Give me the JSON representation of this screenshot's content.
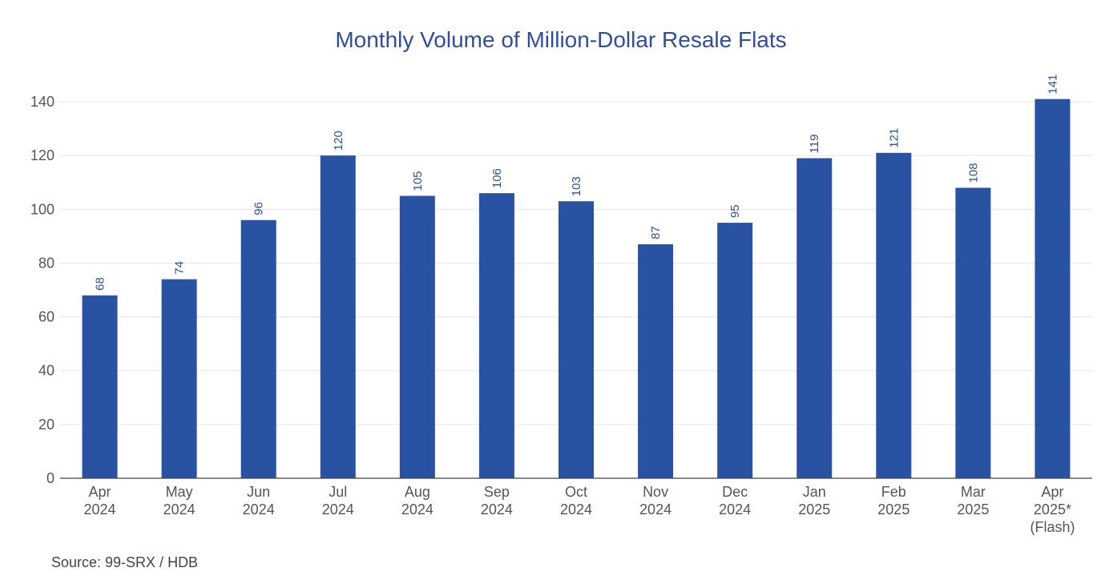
{
  "chart_data": {
    "type": "bar",
    "title": "Monthly Volume of Million-Dollar Resale Flats",
    "xlabel": "",
    "ylabel": "",
    "categories": [
      [
        "Apr",
        "2024"
      ],
      [
        "May",
        "2024"
      ],
      [
        "Jun",
        "2024"
      ],
      [
        "Jul",
        "2024"
      ],
      [
        "Aug",
        "2024"
      ],
      [
        "Sep",
        "2024"
      ],
      [
        "Oct",
        "2024"
      ],
      [
        "Nov",
        "2024"
      ],
      [
        "Dec",
        "2024"
      ],
      [
        "Jan",
        "2025"
      ],
      [
        "Feb",
        "2025"
      ],
      [
        "Mar",
        "2025"
      ],
      [
        "Apr",
        "2025*",
        "(Flash)"
      ]
    ],
    "values": [
      68,
      74,
      96,
      120,
      105,
      106,
      103,
      87,
      95,
      119,
      121,
      108,
      141
    ],
    "ylim": [
      0,
      140
    ],
    "yticks": [
      0,
      20,
      40,
      60,
      80,
      100,
      120,
      140
    ],
    "grid": true,
    "data_labels": true,
    "bar_color": "#2952a3",
    "label_color": "#2f4f9e"
  },
  "footer": {
    "source": "Source: 99-SRX / HDB"
  }
}
